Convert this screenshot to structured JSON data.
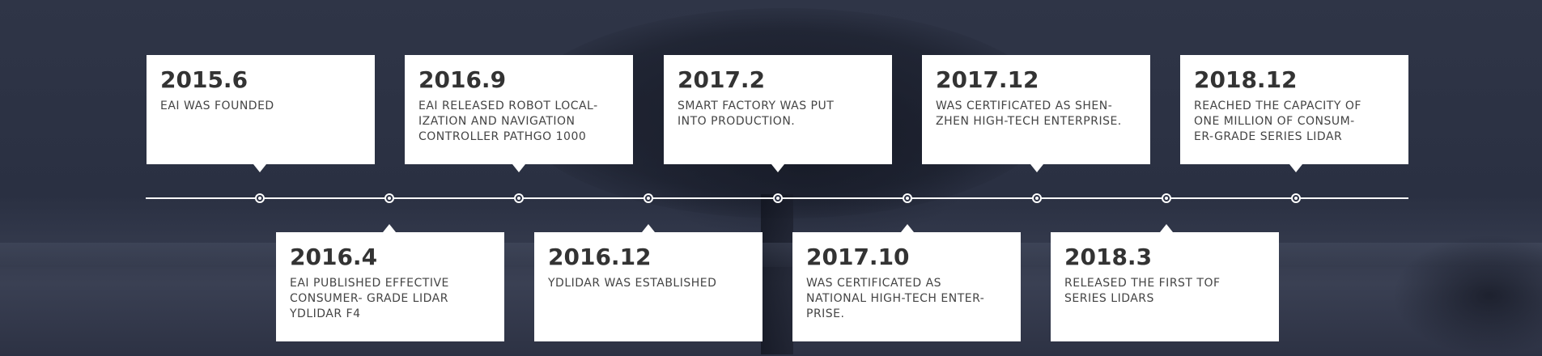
{
  "milestones_top": [
    {
      "year": "2015.6",
      "desc": "EAI WAS FOUNDED"
    },
    {
      "year": "2016.9",
      "desc": "EAI RELEASED ROBOT LOCAL-\nIZATION  AND  NAVIGATION\nCONTROLLER PATHGO 1000"
    },
    {
      "year": "2017.2",
      "desc": "SMART FACTORY  WAS PUT\nINTO PRODUCTION."
    },
    {
      "year": "2017.12",
      "desc": "WAS CERTIFICATED AS SHEN-\nZHEN HIGH-TECH ENTERPRISE."
    },
    {
      "year": "2018.12",
      "desc": "REACHED THE CAPACITY OF\nONE MILLION OF CONSUM-\nER-GRADE SERIES LIDAR"
    }
  ],
  "milestones_bottom": [
    {
      "year": "2016.4",
      "desc": "EAI PUBLISHED EFFECTIVE\nCONSUMER- GRADE LIDAR\nYDLIDAR F4"
    },
    {
      "year": "2016.12",
      "desc": "YDLIDAR WAS ESTABLISHED"
    },
    {
      "year": "2017.10",
      "desc": "WAS CERTIFICATED AS\nNATIONAL  HIGH-TECH ENTER-\nPRISE."
    },
    {
      "year": "2018.3",
      "desc": "RELEASED THE FIRST TOF\nSERIES LIDARS"
    }
  ]
}
